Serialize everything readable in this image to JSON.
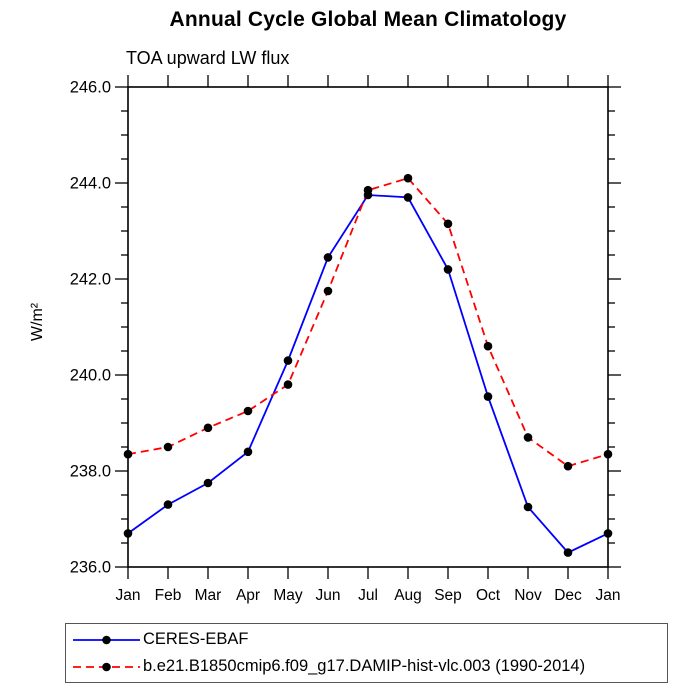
{
  "chart_data": {
    "type": "line",
    "title": "Annual Cycle Global Mean Climatology",
    "subtitle": "TOA upward LW flux",
    "ylabel": "W/m²",
    "xlabel": "",
    "ylim": [
      236.0,
      246.0
    ],
    "ytick_major": 2.0,
    "ytick_minor": 0.5,
    "ytick_labels": [
      "236.0",
      "238.0",
      "240.0",
      "242.0",
      "244.0",
      "246.0"
    ],
    "categories": [
      "Jan",
      "Feb",
      "Mar",
      "Apr",
      "May",
      "Jun",
      "Jul",
      "Aug",
      "Sep",
      "Oct",
      "Nov",
      "Dec",
      "Jan"
    ],
    "grid": false,
    "legend_position": "bottom-left-box",
    "axis_color": "#000000",
    "series": [
      {
        "name": "CERES-EBAF",
        "color": "#0000ff",
        "line_style": "solid",
        "marker": "filled-circle",
        "marker_color": "#000000",
        "values": [
          236.7,
          237.3,
          237.75,
          238.4,
          240.3,
          242.45,
          243.75,
          243.7,
          242.2,
          239.55,
          237.25,
          236.3,
          236.7
        ]
      },
      {
        "name": "b.e21.B1850cmip6.f09_g17.DAMIP-hist-vlc.003 (1990-2014)",
        "color": "#ff0000",
        "line_style": "dashed",
        "marker": "filled-circle",
        "marker_color": "#000000",
        "values": [
          238.35,
          238.5,
          238.9,
          239.25,
          239.8,
          241.75,
          243.85,
          244.1,
          243.15,
          240.6,
          238.7,
          238.1,
          238.35
        ]
      }
    ]
  }
}
